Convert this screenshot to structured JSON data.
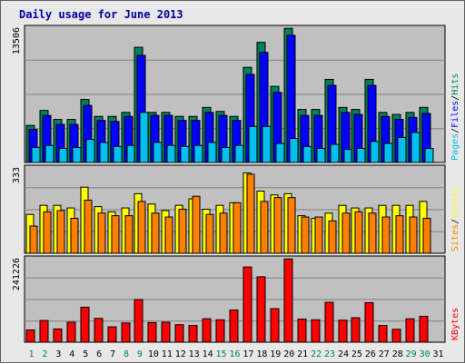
{
  "chart_data": {
    "title": "Daily usage for June 2013",
    "type": "bar",
    "days": [
      "1",
      "2",
      "3",
      "4",
      "5",
      "6",
      "7",
      "8",
      "9",
      "10",
      "11",
      "12",
      "13",
      "14",
      "15",
      "16",
      "17",
      "18",
      "19",
      "20",
      "21",
      "22",
      "23",
      "24",
      "25",
      "26",
      "27",
      "28",
      "29",
      "30",
      "31"
    ],
    "weekend_days": [
      1,
      2,
      8,
      9,
      15,
      16,
      22,
      23,
      29,
      30
    ],
    "panels": [
      {
        "axis_max_label": "13506",
        "axis_max": 13506,
        "legend": [
          "Pages",
          "/",
          "Files",
          "/",
          "Hits"
        ],
        "legend_colors": [
          "#00c0f0",
          "#000000",
          "#0000ff",
          "#000000",
          "#00805c"
        ],
        "series": [
          {
            "name": "Hits",
            "color": "#00805c",
            "values": [
              3700,
              5200,
              4300,
              4300,
              6300,
              4600,
              4600,
              5000,
              11500,
              5000,
              5000,
              4600,
              4600,
              5500,
              5100,
              4600,
              9500,
              12000,
              7600,
              13400,
              5300,
              5300,
              8300,
              5500,
              5300,
              8300,
              5000,
              4800,
              5000,
              5500,
              0
            ]
          },
          {
            "name": "Files",
            "color": "#0000ff",
            "values": [
              3300,
              4700,
              3800,
              3800,
              5700,
              4200,
              4100,
              4600,
              10700,
              4700,
              4700,
              4200,
              4200,
              5000,
              4700,
              4200,
              8800,
              11000,
              7000,
              12700,
              4700,
              4700,
              7700,
              5000,
              4800,
              7700,
              4600,
              4300,
              4500,
              4900,
              0
            ]
          },
          {
            "name": "Pages",
            "color": "#00c0f0",
            "values": [
              1500,
              1700,
              1400,
              1500,
              2300,
              2000,
              1600,
              1700,
              5000,
              2000,
              1700,
              1600,
              1700,
              2000,
              1500,
              1700,
              3600,
              3600,
              1900,
              2400,
              1600,
              1400,
              1800,
              1300,
              1400,
              2100,
              1900,
              2500,
              3000,
              1400,
              0
            ]
          }
        ]
      },
      {
        "axis_max_label": "333",
        "axis_max": 333,
        "legend": [
          "Sites",
          "/",
          "Visits"
        ],
        "legend_colors": [
          "#ff8000",
          "#000000",
          "#ffff00"
        ],
        "series": [
          {
            "name": "Visits",
            "color": "#ffff00",
            "values": [
              150,
              185,
              185,
              175,
              255,
              180,
              160,
              175,
              230,
              190,
              165,
              185,
              210,
              170,
              185,
              195,
              310,
              240,
              225,
              230,
              145,
              135,
              155,
              185,
              175,
              175,
              185,
              185,
              185,
              200,
              0
            ]
          },
          {
            "name": "Sites",
            "color": "#ff8000",
            "values": [
              105,
              160,
              165,
              135,
              205,
              155,
              145,
              145,
              200,
              155,
              140,
              170,
              220,
              150,
              155,
              195,
              305,
              200,
              215,
              215,
              140,
              140,
              125,
              155,
              160,
              155,
              140,
              145,
              140,
              135,
              0
            ]
          }
        ]
      },
      {
        "axis_max_label": "241226",
        "axis_max": 241226,
        "legend": [
          "KBytes"
        ],
        "legend_colors": [
          "#ff0000"
        ],
        "series": [
          {
            "name": "KBytes",
            "color": "#ff0000",
            "values": [
              35000,
              62000,
              38000,
              57000,
              100000,
              68000,
              44000,
              55000,
              122000,
              56000,
              57000,
              50000,
              48000,
              67000,
              64000,
              92000,
              215000,
              187000,
              96000,
              238000,
              66000,
              64000,
              114000,
              63000,
              70000,
              113000,
              48000,
              37000,
              67000,
              74000,
              0
            ]
          }
        ]
      }
    ]
  }
}
